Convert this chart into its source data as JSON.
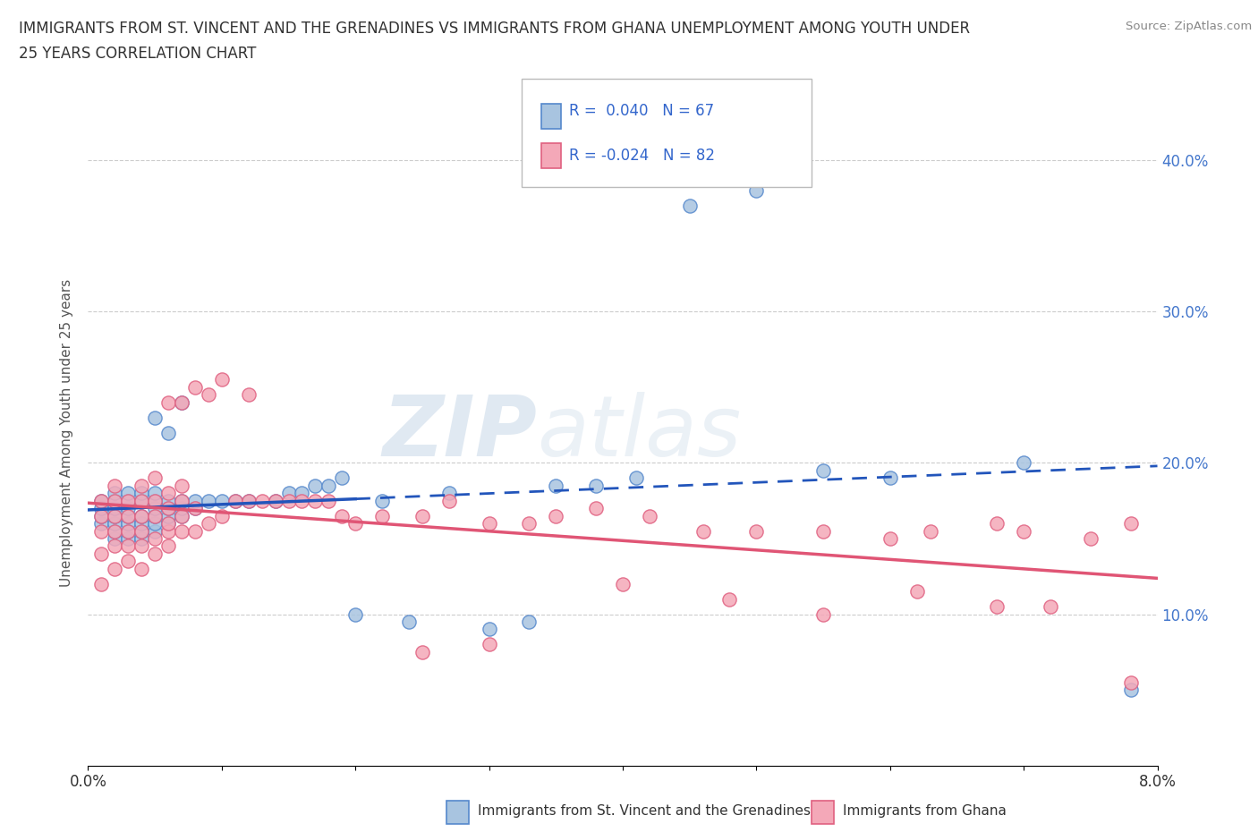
{
  "title_line1": "IMMIGRANTS FROM ST. VINCENT AND THE GRENADINES VS IMMIGRANTS FROM GHANA UNEMPLOYMENT AMONG YOUTH UNDER",
  "title_line2": "25 YEARS CORRELATION CHART",
  "source": "Source: ZipAtlas.com",
  "ylabel": "Unemployment Among Youth under 25 years",
  "xlim": [
    0.0,
    0.08
  ],
  "ylim": [
    0.0,
    0.44
  ],
  "legend_label1": "Immigrants from St. Vincent and the Grenadines",
  "legend_label2": "Immigrants from Ghana",
  "R1": 0.04,
  "N1": 67,
  "R2": -0.024,
  "N2": 82,
  "color1": "#a8c4e0",
  "color2": "#f4a8b8",
  "edge_color1": "#5588cc",
  "edge_color2": "#e06080",
  "trendline_color1": "#2255bb",
  "trendline_color2": "#e05575",
  "watermark_zip": "ZIP",
  "watermark_atlas": "atlas",
  "blue_x": [
    0.001,
    0.001,
    0.001,
    0.001,
    0.002,
    0.002,
    0.002,
    0.002,
    0.002,
    0.002,
    0.002,
    0.003,
    0.003,
    0.003,
    0.003,
    0.003,
    0.003,
    0.003,
    0.004,
    0.004,
    0.004,
    0.004,
    0.004,
    0.004,
    0.005,
    0.005,
    0.005,
    0.005,
    0.005,
    0.005,
    0.005,
    0.006,
    0.006,
    0.006,
    0.006,
    0.006,
    0.007,
    0.007,
    0.007,
    0.007,
    0.008,
    0.008,
    0.009,
    0.01,
    0.011,
    0.012,
    0.014,
    0.015,
    0.016,
    0.017,
    0.018,
    0.019,
    0.02,
    0.022,
    0.024,
    0.027,
    0.03,
    0.033,
    0.035,
    0.038,
    0.041,
    0.045,
    0.05,
    0.055,
    0.06,
    0.07,
    0.078
  ],
  "blue_y": [
    0.16,
    0.165,
    0.17,
    0.175,
    0.15,
    0.155,
    0.16,
    0.165,
    0.17,
    0.175,
    0.18,
    0.15,
    0.155,
    0.16,
    0.165,
    0.17,
    0.175,
    0.18,
    0.15,
    0.155,
    0.16,
    0.165,
    0.175,
    0.18,
    0.155,
    0.16,
    0.165,
    0.17,
    0.175,
    0.18,
    0.23,
    0.16,
    0.165,
    0.17,
    0.175,
    0.22,
    0.165,
    0.17,
    0.175,
    0.24,
    0.17,
    0.175,
    0.175,
    0.175,
    0.175,
    0.175,
    0.175,
    0.18,
    0.18,
    0.185,
    0.185,
    0.19,
    0.1,
    0.175,
    0.095,
    0.18,
    0.09,
    0.095,
    0.185,
    0.185,
    0.19,
    0.37,
    0.38,
    0.195,
    0.19,
    0.2,
    0.05
  ],
  "pink_x": [
    0.001,
    0.001,
    0.001,
    0.001,
    0.001,
    0.002,
    0.002,
    0.002,
    0.002,
    0.002,
    0.002,
    0.003,
    0.003,
    0.003,
    0.003,
    0.003,
    0.004,
    0.004,
    0.004,
    0.004,
    0.004,
    0.004,
    0.005,
    0.005,
    0.005,
    0.005,
    0.005,
    0.006,
    0.006,
    0.006,
    0.006,
    0.006,
    0.006,
    0.007,
    0.007,
    0.007,
    0.007,
    0.007,
    0.008,
    0.008,
    0.008,
    0.009,
    0.009,
    0.01,
    0.01,
    0.011,
    0.012,
    0.012,
    0.013,
    0.014,
    0.015,
    0.016,
    0.017,
    0.018,
    0.019,
    0.02,
    0.022,
    0.025,
    0.027,
    0.03,
    0.033,
    0.035,
    0.038,
    0.042,
    0.046,
    0.05,
    0.055,
    0.06,
    0.063,
    0.068,
    0.07,
    0.075,
    0.078,
    0.025,
    0.03,
    0.04,
    0.048,
    0.055,
    0.062,
    0.068,
    0.072,
    0.078
  ],
  "pink_y": [
    0.12,
    0.14,
    0.155,
    0.165,
    0.175,
    0.13,
    0.145,
    0.155,
    0.165,
    0.175,
    0.185,
    0.135,
    0.145,
    0.155,
    0.165,
    0.175,
    0.13,
    0.145,
    0.155,
    0.165,
    0.175,
    0.185,
    0.14,
    0.15,
    0.165,
    0.175,
    0.19,
    0.145,
    0.155,
    0.16,
    0.17,
    0.18,
    0.24,
    0.155,
    0.165,
    0.175,
    0.185,
    0.24,
    0.155,
    0.17,
    0.25,
    0.16,
    0.245,
    0.165,
    0.255,
    0.175,
    0.175,
    0.245,
    0.175,
    0.175,
    0.175,
    0.175,
    0.175,
    0.175,
    0.165,
    0.16,
    0.165,
    0.165,
    0.175,
    0.16,
    0.16,
    0.165,
    0.17,
    0.165,
    0.155,
    0.155,
    0.155,
    0.15,
    0.155,
    0.16,
    0.155,
    0.15,
    0.16,
    0.075,
    0.08,
    0.12,
    0.11,
    0.1,
    0.115,
    0.105,
    0.105,
    0.055
  ]
}
